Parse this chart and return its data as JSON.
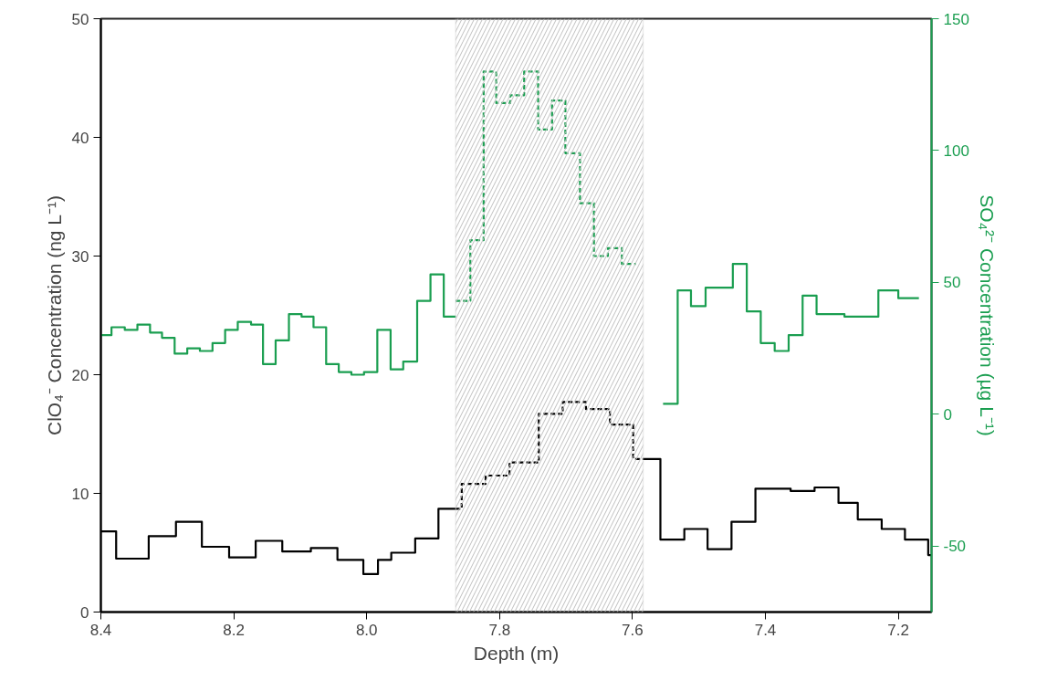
{
  "chart_data": {
    "type": "step",
    "xlabel": "Depth (m)",
    "ylabel": "ClO₄⁻ Concentration (ng L⁻¹)",
    "y2label": "SO₄²⁻ Concentration (µg L⁻¹)",
    "xlim": [
      8.4,
      7.15
    ],
    "xticks": [
      8.4,
      8.2,
      {
        "value": 8.0,
        "label": "8.0"
      },
      7.8,
      7.6,
      7.4,
      7.2
    ],
    "ylim": [
      0,
      50
    ],
    "yticks": [
      0,
      10,
      20,
      30,
      40,
      50
    ],
    "y2lim": [
      -75,
      150
    ],
    "y2ticks": [
      -50,
      0,
      50,
      100,
      150
    ],
    "grid": false,
    "bands": [
      {
        "axis": "x",
        "from": 7.866,
        "to": 7.584,
        "color": "#bfbfbf"
      }
    ],
    "series": [
      {
        "color": "#000000",
        "line_style": "solid",
        "x": [
          8.4,
          8.377,
          8.328,
          8.287,
          8.248,
          8.207,
          8.167,
          8.127,
          8.084,
          8.044,
          8.005,
          7.983,
          7.963,
          7.927,
          7.892,
          7.866
        ],
        "values": [
          6.8,
          4.5,
          6.4,
          7.6,
          5.5,
          4.6,
          6.0,
          5.1,
          5.4,
          4.4,
          3.2,
          4.4,
          5.0,
          6.2,
          8.7,
          8.7
        ]
      },
      {
        "color": "#000000",
        "line_style": "dashed",
        "x": [
          7.866,
          7.857,
          7.821,
          7.785,
          7.741,
          7.705,
          7.67,
          7.634,
          7.599,
          7.584
        ],
        "values": [
          8.7,
          10.8,
          11.5,
          12.6,
          16.7,
          17.7,
          17.1,
          15.8,
          12.9,
          12.9
        ]
      },
      {
        "color": "#000000",
        "line_style": "solid",
        "x": [
          7.584,
          7.558,
          7.522,
          7.487,
          7.451,
          7.415,
          7.362,
          7.326,
          7.29,
          7.261,
          7.225,
          7.19,
          7.155,
          7.15
        ],
        "values": [
          12.9,
          6.1,
          7.0,
          5.3,
          7.6,
          10.4,
          10.2,
          10.5,
          9.2,
          7.8,
          7.0,
          6.1,
          4.8,
          4.8
        ]
      },
      {
        "color": "#1a9e50",
        "line_style": "solid",
        "axis": "y2",
        "x": [
          8.4,
          8.384,
          8.364,
          8.345,
          8.326,
          8.308,
          8.289,
          8.27,
          8.251,
          8.232,
          8.213,
          8.194,
          8.174,
          8.156,
          8.137,
          8.117,
          8.098,
          8.08,
          8.061,
          8.042,
          8.023,
          8.004,
          7.984,
          7.964,
          7.945,
          7.924,
          7.904,
          7.884,
          7.866
        ],
        "values": [
          30,
          33,
          32,
          34,
          31,
          29,
          23,
          25,
          24,
          27,
          32,
          35,
          34,
          19,
          28,
          38,
          37,
          33,
          19,
          16,
          15,
          16,
          32,
          17,
          20,
          43,
          53,
          37,
          37
        ]
      },
      {
        "color": "#1a9e50",
        "line_style": "dashed",
        "axis": "y2",
        "x": [
          7.866,
          7.844,
          7.824,
          7.805,
          7.784,
          7.763,
          7.742,
          7.721,
          7.701,
          7.679,
          7.658,
          7.637,
          7.616,
          7.595
        ],
        "values": [
          43,
          66,
          130,
          118,
          121,
          130,
          108,
          119,
          99,
          80,
          60,
          63,
          57,
          57
        ]
      },
      {
        "color": "#1a9e50",
        "line_style": "solid",
        "axis": "y2",
        "x": [
          7.554,
          7.532,
          7.512,
          7.49,
          7.47,
          7.449,
          7.428,
          7.407,
          7.386,
          7.365,
          7.344,
          7.323,
          7.302,
          7.281,
          7.256,
          7.23,
          7.2,
          7.169
        ],
        "values": [
          4,
          47,
          41,
          48,
          48,
          57,
          39,
          27,
          24,
          30,
          45,
          38,
          38,
          37,
          37,
          47,
          44,
          44
        ]
      }
    ]
  }
}
